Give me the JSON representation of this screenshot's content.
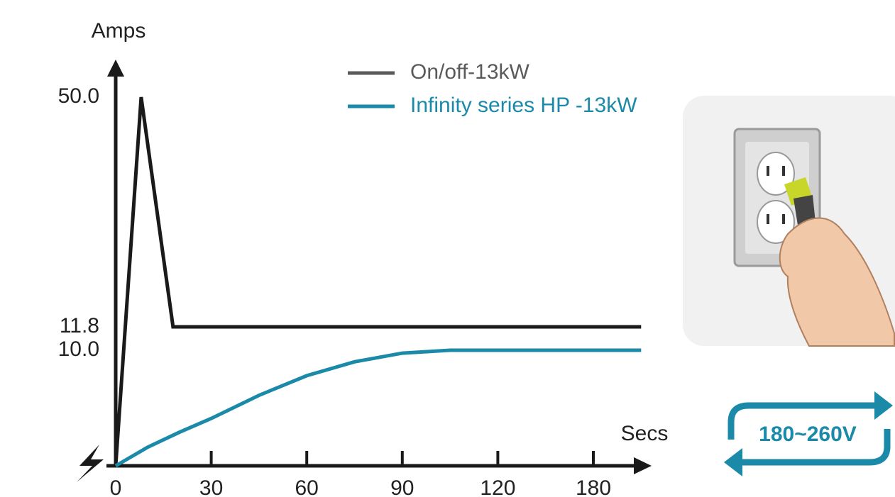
{
  "chart_data": {
    "type": "line",
    "y_label": "Amps",
    "x_label": "Secs",
    "xlim": [
      0,
      210
    ],
    "xticks": [
      0,
      30,
      60,
      90,
      120,
      180
    ],
    "ylim": [
      0,
      50
    ],
    "yticks": [
      {
        "value": 10,
        "label": "10.0"
      },
      {
        "value": 11.8,
        "label": "11.8"
      },
      {
        "value": 50,
        "label": "50.0"
      }
    ],
    "series": [
      {
        "name": "On/off-13kW",
        "color": "#1a1a1a",
        "legend_color": "#5a5a5a",
        "x": [
          0,
          8,
          18,
          210
        ],
        "values": [
          0,
          50,
          11.8,
          11.8
        ]
      },
      {
        "name": "Infinity series HP -13kW",
        "color": "#1b8aa9",
        "legend_color": "#1b8aa9",
        "x": [
          0,
          10,
          20,
          30,
          45,
          60,
          75,
          90,
          105,
          120,
          180,
          210
        ],
        "values": [
          0,
          1.6,
          2.9,
          4.1,
          6.1,
          7.8,
          9.0,
          9.75,
          10,
          10,
          10,
          10
        ]
      }
    ],
    "voltage_label": "180~260V"
  }
}
